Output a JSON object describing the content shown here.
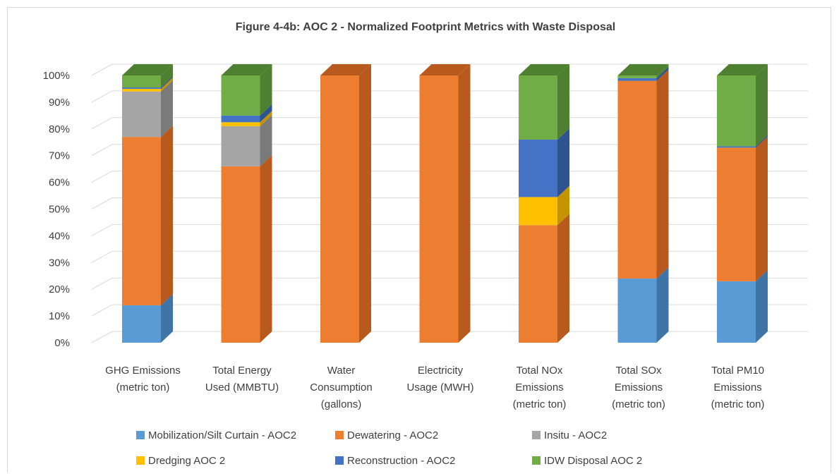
{
  "chart_data": {
    "type": "bar",
    "stacked": true,
    "normalized": true,
    "three_d": true,
    "title": "Figure 4-4b: AOC 2 - Normalized Footprint Metrics with Waste Disposal",
    "categories": [
      [
        "GHG Emissions",
        "(metric ton)"
      ],
      [
        "Total Energy",
        "Used (MMBTU)"
      ],
      [
        "Water",
        "Consumption",
        "(gallons)"
      ],
      [
        "Electricity",
        "Usage (MWH)"
      ],
      [
        "Total NOx",
        "Emissions",
        "(metric ton)"
      ],
      [
        "Total SOx",
        "Emissions",
        "(metric ton)"
      ],
      [
        "Total PM10",
        "Emissions",
        "(metric ton)"
      ]
    ],
    "y_ticks": [
      "0%",
      "10%",
      "20%",
      "30%",
      "40%",
      "50%",
      "60%",
      "70%",
      "80%",
      "90%",
      "100%"
    ],
    "ylim": [
      0,
      100
    ],
    "grid": true,
    "legend_position": "bottom",
    "series": [
      {
        "name": "Mobilization/Silt Curtain - AOC2",
        "color": "#5b9bd5",
        "side": "#3f74a6",
        "values": [
          14,
          0,
          0,
          0,
          0,
          24,
          23
        ]
      },
      {
        "name": "Dewatering - AOC2",
        "color": "#ed7d31",
        "side": "#b85a1e",
        "values": [
          63,
          66,
          100,
          100,
          44,
          74,
          50
        ]
      },
      {
        "name": "Insitu - AOC2",
        "color": "#a5a5a5",
        "side": "#7a7a7a",
        "values": [
          17,
          15,
          0,
          0,
          0,
          0,
          0
        ]
      },
      {
        "name": "Dredging AOC  2",
        "color": "#ffc000",
        "side": "#c49400",
        "values": [
          1,
          1.5,
          0,
          0,
          10.5,
          0,
          0
        ]
      },
      {
        "name": "Reconstruction - AOC2",
        "color": "#4472c4",
        "side": "#2f5290",
        "values": [
          0.5,
          2.5,
          0,
          0,
          21.5,
          1,
          0.5
        ]
      },
      {
        "name": "IDW Disposal AOC 2",
        "color": "#70ad47",
        "side": "#4f7f31",
        "values": [
          4.5,
          15,
          0,
          0,
          24,
          1,
          26.5
        ]
      }
    ]
  }
}
